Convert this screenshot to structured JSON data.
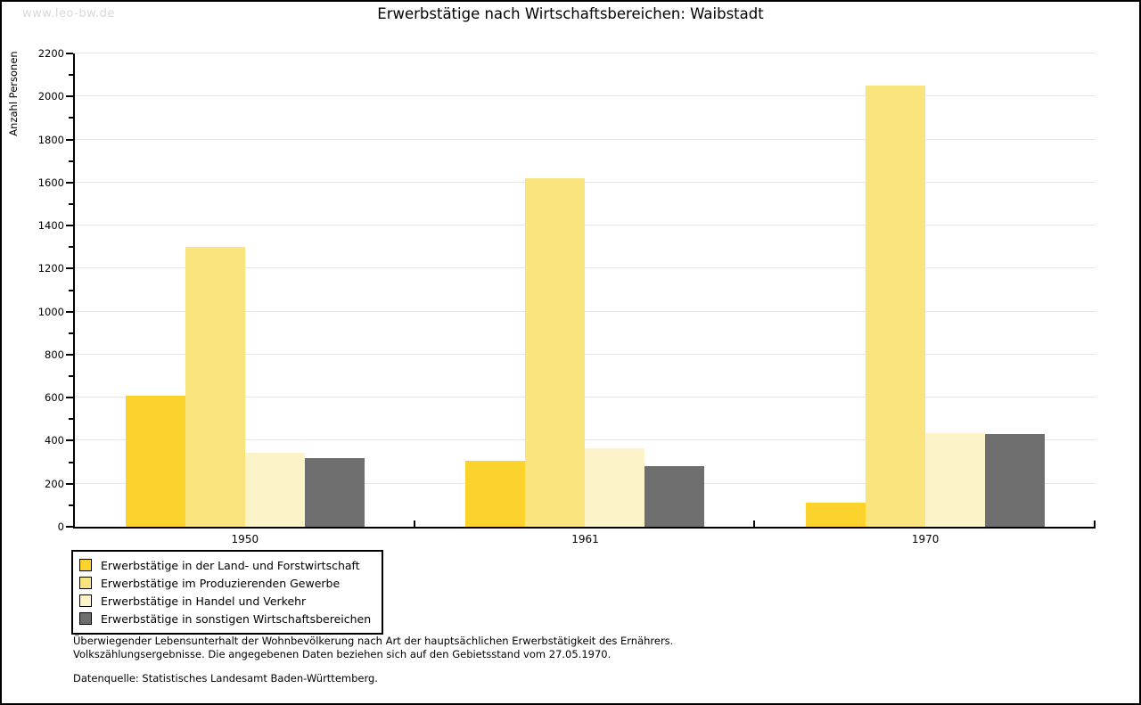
{
  "watermark": "www.leo-bw.de",
  "title": "Erwerbstätige nach Wirtschaftsbereichen: Waibstadt",
  "chart_data": {
    "type": "bar",
    "title": "Erwerbstätige nach Wirtschaftsbereichen: Waibstadt",
    "xlabel": "",
    "ylabel": "Anzahl Personen",
    "categories": [
      "1950",
      "1961",
      "1970"
    ],
    "series": [
      {
        "name": "Erwerbstätige in der Land- und Forstwirtschaft",
        "color": "#fcd22d",
        "values": [
          610,
          305,
          110
        ]
      },
      {
        "name": "Erwerbstätige im Produzierenden Gewerbe",
        "color": "#fae47e",
        "values": [
          1300,
          1620,
          2050
        ]
      },
      {
        "name": "Erwerbstätige in Handel und Verkehr",
        "color": "#fcf3c8",
        "values": [
          345,
          365,
          435
        ]
      },
      {
        "name": "Erwerbstätige in sonstigen Wirtschaftsbereichen",
        "color": "#6e6e6e",
        "values": [
          320,
          280,
          430
        ]
      }
    ],
    "ylim": [
      0,
      2200
    ],
    "ytick_step": 200,
    "minor_tick_step": 100,
    "grid": true,
    "legend_position": "bottom-left"
  },
  "footnotes": {
    "line1": "Überwiegender Lebensunterhalt der Wohnbevölkerung nach Art der hauptsächlichen Erwerbstätigkeit des Ernährers.",
    "line2": "Volkszählungsergebnisse. Die angegebenen Daten beziehen sich auf den Gebietsstand vom 27.05.1970.",
    "source": "Datenquelle: Statistisches Landesamt Baden-Württemberg."
  },
  "colors": {
    "grid": "#e7e7e7",
    "axis": "#000000",
    "watermark": "#d9d9d9",
    "background": "#ffffff"
  }
}
